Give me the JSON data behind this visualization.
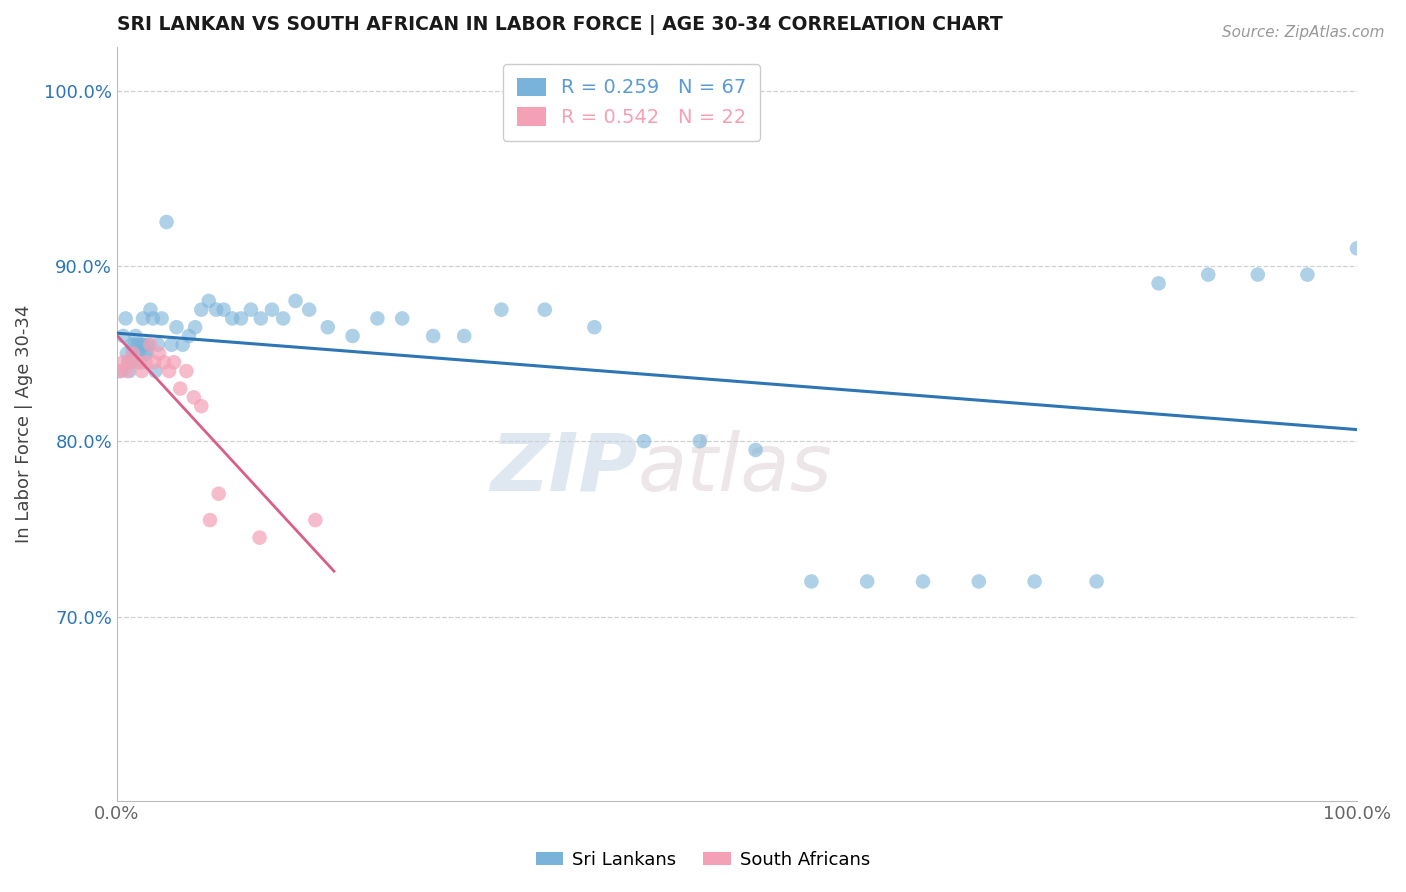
{
  "title": "SRI LANKAN VS SOUTH AFRICAN IN LABOR FORCE | AGE 30-34 CORRELATION CHART",
  "source": "Source: ZipAtlas.com",
  "ylabel": "In Labor Force | Age 30-34",
  "xlim": [
    0.0,
    1.0
  ],
  "ylim": [
    0.595,
    1.025
  ],
  "yticks": [
    1.0,
    0.9,
    0.8,
    0.7
  ],
  "ytick_labels": [
    "100.0%",
    "90.0%",
    "80.0%",
    "70.0%"
  ],
  "xtick_positions": [
    0.0,
    1.0
  ],
  "xtick_labels": [
    "0.0%",
    "100.0%"
  ],
  "legend_entries": [
    {
      "label": "R = 0.259   N = 67",
      "color": "#5b9bd5"
    },
    {
      "label": "R = 0.542   N = 22",
      "color": "#f4a0b5"
    }
  ],
  "blue_dot_color": "#7ab3d9",
  "pink_dot_color": "#f4a0b5",
  "blue_line_color": "#2e75b6",
  "pink_line_color": "#d95f8a",
  "watermark_zip": "ZIP",
  "watermark_atlas": "atlas",
  "watermark_color": "#c8d8e8",
  "background_color": "#ffffff",
  "grid_color": "#d0d0d0",
  "sri_lankan_x": [
    0.003,
    0.005,
    0.007,
    0.008,
    0.009,
    0.01,
    0.011,
    0.012,
    0.013,
    0.014,
    0.015,
    0.016,
    0.017,
    0.018,
    0.019,
    0.02,
    0.021,
    0.022,
    0.023,
    0.024,
    0.025,
    0.027,
    0.029,
    0.031,
    0.033,
    0.036,
    0.04,
    0.044,
    0.048,
    0.053,
    0.058,
    0.063,
    0.068,
    0.074,
    0.08,
    0.086,
    0.093,
    0.1,
    0.108,
    0.116,
    0.125,
    0.134,
    0.144,
    0.155,
    0.17,
    0.19,
    0.21,
    0.23,
    0.255,
    0.28,
    0.31,
    0.345,
    0.385,
    0.425,
    0.47,
    0.515,
    0.56,
    0.605,
    0.65,
    0.695,
    0.74,
    0.79,
    0.84,
    0.88,
    0.92,
    0.96,
    1.0
  ],
  "sri_lankan_y": [
    0.84,
    0.86,
    0.87,
    0.85,
    0.845,
    0.84,
    0.845,
    0.855,
    0.85,
    0.855,
    0.86,
    0.85,
    0.855,
    0.85,
    0.845,
    0.855,
    0.87,
    0.855,
    0.85,
    0.85,
    0.855,
    0.875,
    0.87,
    0.84,
    0.855,
    0.87,
    0.925,
    0.855,
    0.865,
    0.855,
    0.86,
    0.865,
    0.875,
    0.88,
    0.875,
    0.875,
    0.87,
    0.87,
    0.875,
    0.87,
    0.875,
    0.87,
    0.88,
    0.875,
    0.865,
    0.86,
    0.87,
    0.87,
    0.86,
    0.86,
    0.875,
    0.875,
    0.865,
    0.8,
    0.8,
    0.795,
    0.72,
    0.72,
    0.72,
    0.72,
    0.72,
    0.72,
    0.89,
    0.895,
    0.895,
    0.895,
    0.91
  ],
  "south_african_x": [
    0.002,
    0.005,
    0.008,
    0.01,
    0.013,
    0.017,
    0.02,
    0.023,
    0.027,
    0.03,
    0.034,
    0.038,
    0.042,
    0.046,
    0.051,
    0.056,
    0.062,
    0.068,
    0.075,
    0.082,
    0.115,
    0.16
  ],
  "south_african_y": [
    0.84,
    0.845,
    0.84,
    0.845,
    0.85,
    0.845,
    0.84,
    0.845,
    0.855,
    0.845,
    0.85,
    0.845,
    0.84,
    0.845,
    0.83,
    0.84,
    0.825,
    0.82,
    0.755,
    0.77,
    0.745,
    0.755
  ],
  "bottom_legend": [
    {
      "label": "Sri Lankans",
      "color": "#7ab3d9"
    },
    {
      "label": "South Africans",
      "color": "#f4a0b5"
    }
  ]
}
